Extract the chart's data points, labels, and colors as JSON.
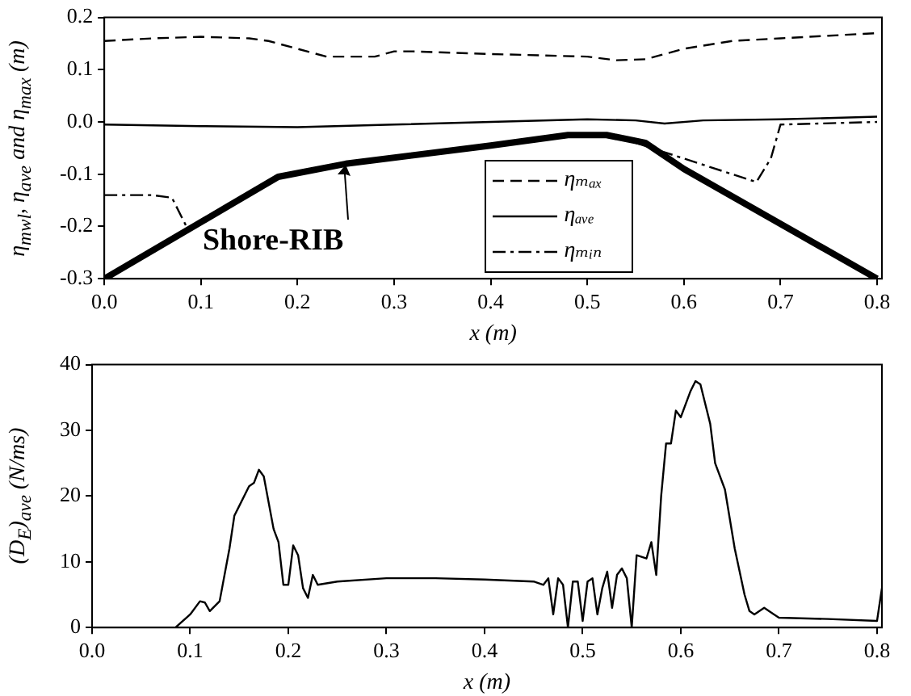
{
  "chart_data": [
    {
      "type": "line",
      "xlabel": "x (m)",
      "ylabel": "η$_{mwl}$, η$_{ave}$ and η$_{max}$ (m)",
      "xlim": [
        0,
        0.805
      ],
      "ylim": [
        -0.3,
        0.2
      ],
      "xticks": [
        {
          "value": 0,
          "label": "0.0"
        },
        0.1,
        0.2,
        0.3,
        0.4,
        0.5,
        0.6,
        0.7,
        0.8
      ],
      "yticks": [
        -0.3,
        -0.2,
        -0.1,
        {
          "value": 0,
          "label": "0.0"
        },
        0.1,
        0.2
      ],
      "grid": false,
      "legend": "bottom",
      "annotations": [
        {
          "text": "Shore-RIB",
          "x": 0.25,
          "y": -0.08
        }
      ],
      "series": [
        {
          "name": "ηₘₐₓ",
          "color": "#000000",
          "line_style": "dashed",
          "x": [
            0,
            0.05,
            0.1,
            0.15,
            0.17,
            0.2,
            0.23,
            0.28,
            0.3,
            0.32,
            0.4,
            0.5,
            0.53,
            0.56,
            0.6,
            0.65,
            0.7,
            0.75,
            0.8
          ],
          "values": [
            0.155,
            0.16,
            0.163,
            0.16,
            0.155,
            0.14,
            0.125,
            0.125,
            0.135,
            0.135,
            0.13,
            0.125,
            0.118,
            0.12,
            0.14,
            0.155,
            0.16,
            0.165,
            0.17
          ]
        },
        {
          "name": "ηₐᵥₑ",
          "color": "#000000",
          "line_style": "solid",
          "x": [
            0,
            0.1,
            0.2,
            0.3,
            0.4,
            0.5,
            0.55,
            0.58,
            0.62,
            0.7,
            0.8
          ],
          "values": [
            -0.005,
            -0.008,
            -0.01,
            -0.005,
            0,
            0.005,
            0.003,
            -0.003,
            0.003,
            0.005,
            0.01
          ]
        },
        {
          "name": "ηₘᵢₙ",
          "color": "#000000",
          "line_style": "dashdot",
          "x": [
            0,
            0.05,
            0.07,
            0.085,
            0.3,
            0.55,
            0.6,
            0.65,
            0.675,
            0.69,
            0.7,
            0.8
          ],
          "values": [
            -0.14,
            -0.14,
            -0.145,
            -0.2,
            null,
            -0.04,
            -0.07,
            -0.1,
            -0.115,
            -0.07,
            -0.005,
            0
          ]
        },
        {
          "color": "#000000",
          "line_style": "solid",
          "x": [
            0,
            0.18,
            0.25,
            0.4,
            0.48,
            0.52,
            0.56,
            0.6,
            0.8
          ],
          "values": [
            -0.3,
            -0.105,
            -0.08,
            -0.045,
            -0.025,
            -0.025,
            -0.04,
            -0.09,
            -0.3
          ]
        }
      ]
    },
    {
      "type": "line",
      "xlabel": "x (m)",
      "ylabel": "(D$_{E}$)$_{ave}$ (N/ms)",
      "xlim": [
        0,
        0.805
      ],
      "ylim": [
        0,
        40
      ],
      "xticks": [
        {
          "value": 0,
          "label": "0.0"
        },
        0.1,
        0.2,
        0.3,
        0.4,
        0.5,
        0.6,
        0.7,
        0.8
      ],
      "yticks": [
        0,
        10,
        20,
        30,
        40
      ],
      "grid": false,
      "legend": false,
      "series": [
        {
          "color": "#000000",
          "line_style": "solid",
          "x": [
            0.085,
            0.1,
            0.11,
            0.115,
            0.12,
            0.13,
            0.14,
            0.145,
            0.15,
            0.16,
            0.165,
            0.17,
            0.175,
            0.185,
            0.19,
            0.195,
            0.2,
            0.205,
            0.21,
            0.215,
            0.22,
            0.225,
            0.23,
            0.25,
            0.3,
            0.35,
            0.4,
            0.45,
            0.46,
            0.465,
            0.47,
            0.475,
            0.48,
            0.485,
            0.49,
            0.495,
            0.5,
            0.505,
            0.51,
            0.515,
            0.52,
            0.525,
            0.53,
            0.535,
            0.54,
            0.545,
            0.55,
            0.555,
            0.565,
            0.57,
            0.575,
            0.58,
            0.585,
            0.59,
            0.595,
            0.6,
            0.61,
            0.615,
            0.62,
            0.63,
            0.635,
            0.645,
            0.655,
            0.665,
            0.67,
            0.675,
            0.685,
            0.695,
            0.7,
            0.75,
            0.8,
            0.805
          ],
          "values": [
            0,
            2,
            4,
            3.8,
            2.5,
            4,
            12,
            17,
            18.5,
            21.5,
            22,
            24,
            23,
            15,
            13,
            6.5,
            6.5,
            12.5,
            11,
            6,
            4.5,
            8,
            6.5,
            7,
            7.5,
            7.5,
            7.3,
            7,
            6.5,
            7.5,
            2,
            7.5,
            6.5,
            0,
            7,
            7,
            1,
            7,
            7.5,
            2,
            6,
            8.5,
            3,
            8,
            9,
            7.5,
            0,
            11,
            10.5,
            13,
            8,
            20,
            28,
            28,
            33,
            32,
            36,
            37.5,
            37,
            31,
            25,
            21,
            12,
            5,
            2.5,
            2,
            3,
            2,
            1.5,
            1.3,
            1,
            6
          ]
        }
      ]
    }
  ]
}
